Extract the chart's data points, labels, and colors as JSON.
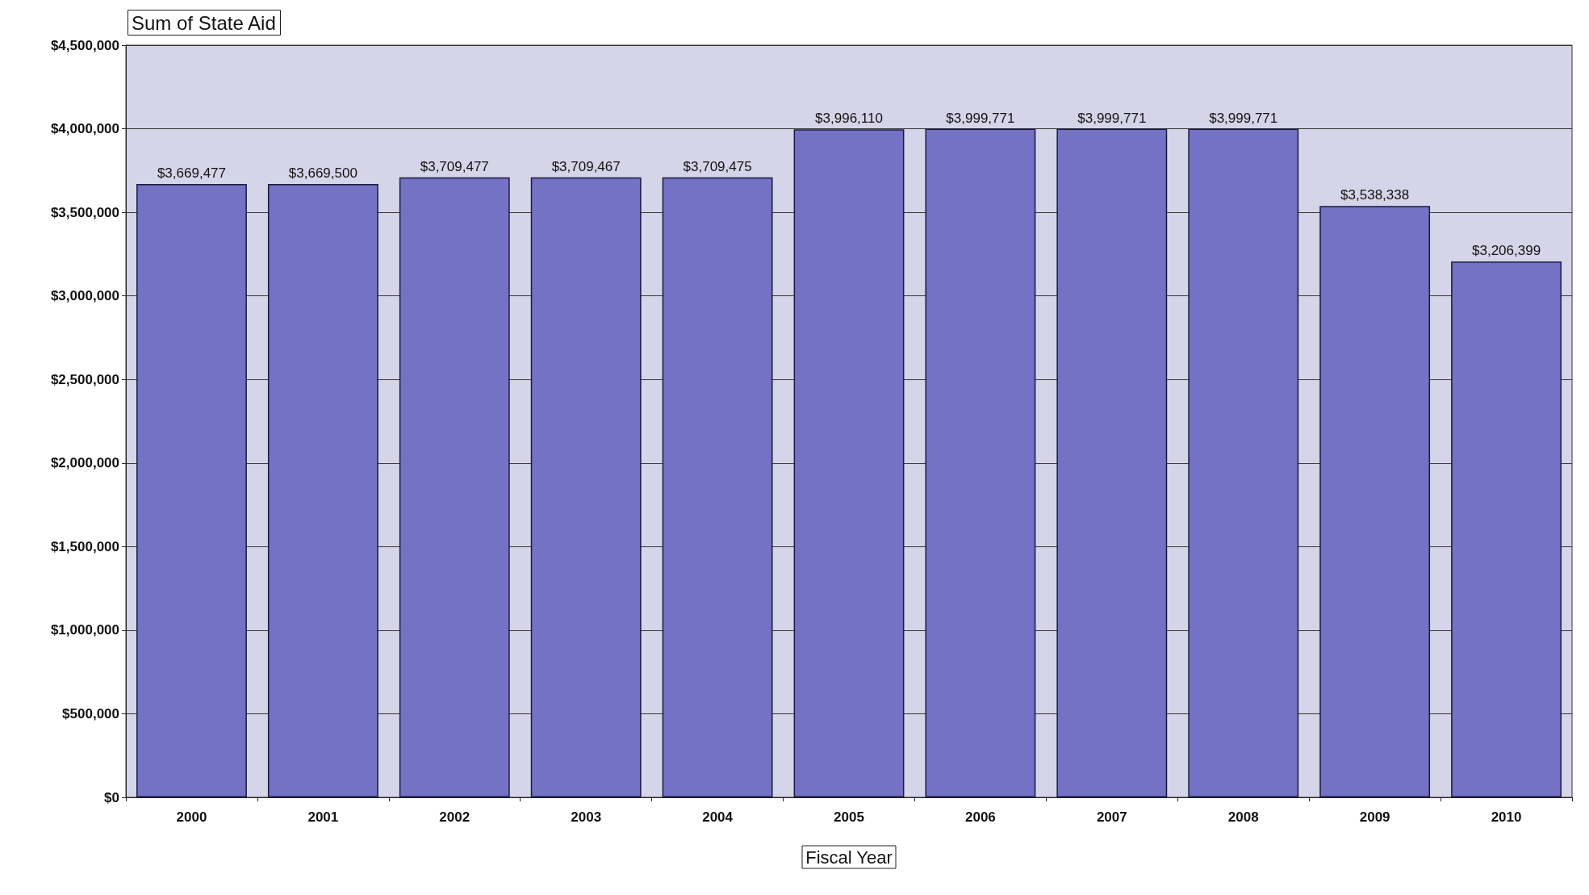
{
  "chart_data": {
    "type": "bar",
    "title": "Sum of State Aid",
    "xlabel": "Fiscal Year",
    "categories": [
      "2000",
      "2001",
      "2002",
      "2003",
      "2004",
      "2005",
      "2006",
      "2007",
      "2008",
      "2009",
      "2010"
    ],
    "values": [
      3669477,
      3669500,
      3709477,
      3709467,
      3709475,
      3996110,
      3999771,
      3999771,
      3999771,
      3538338,
      3206399
    ],
    "value_labels": [
      "$3,669,477",
      "$3,669,500",
      "$3,709,477",
      "$3,709,467",
      "$3,709,475",
      "$3,996,110",
      "$3,999,771",
      "$3,999,771",
      "$3,999,771",
      "$3,538,338",
      "$3,206,399"
    ],
    "color": "#7472c4",
    "ylim": [
      0,
      4500000
    ],
    "yticks": [
      {
        "value": 0,
        "label": "$0"
      },
      {
        "value": 500000,
        "label": "$500,000"
      },
      {
        "value": 1000000,
        "label": "$1,000,000"
      },
      {
        "value": 1500000,
        "label": "$1,500,000"
      },
      {
        "value": 2000000,
        "label": "$2,000,000"
      },
      {
        "value": 2500000,
        "label": "$2,500,000"
      },
      {
        "value": 3000000,
        "label": "$3,000,000"
      },
      {
        "value": 3500000,
        "label": "$3,500,000"
      },
      {
        "value": 4000000,
        "label": "$4,000,000"
      },
      {
        "value": 4500000,
        "label": "$4,500,000"
      }
    ],
    "grid": "y"
  }
}
